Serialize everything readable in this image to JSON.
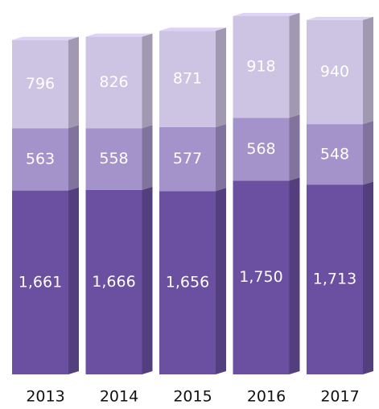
{
  "chart_data": {
    "type": "bar",
    "stacked": true,
    "categories": [
      "2013",
      "2014",
      "2015",
      "2016",
      "2017"
    ],
    "series": [
      {
        "color": "#6b4fa1",
        "values": [
          1661,
          1666,
          1656,
          1750,
          1713
        ],
        "value_labels": [
          "1,661",
          "1,666",
          "1,656",
          "1,750",
          "1,713"
        ]
      },
      {
        "color": "#a493ca",
        "values": [
          563,
          558,
          577,
          568,
          548
        ]
      },
      {
        "color": "#cdc4e3",
        "values": [
          796,
          826,
          871,
          918,
          940
        ]
      }
    ]
  }
}
